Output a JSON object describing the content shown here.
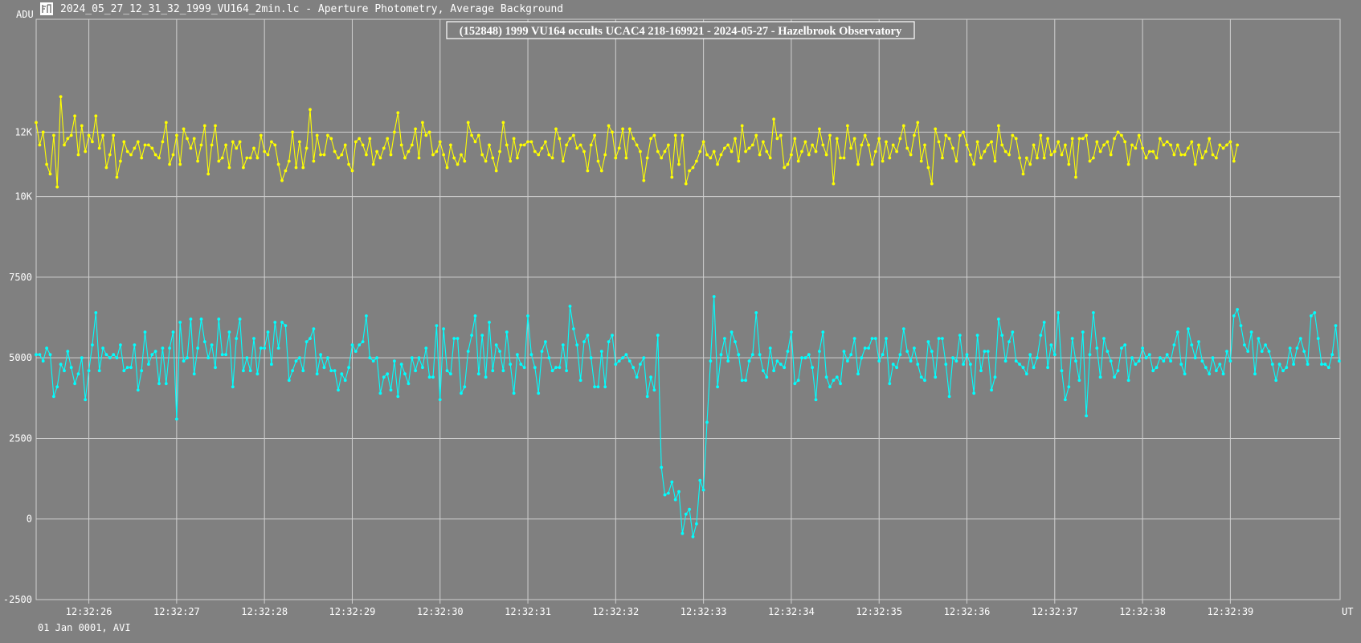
{
  "window": {
    "title": "2024_05_27_12_31_32_1999_VU164_2min.lc - Aperture Photometry, Average Background",
    "icon": "lightcurve-app-icon"
  },
  "footer": {
    "date_label": "01 Jan 0001, AVI"
  },
  "colors": {
    "background": "#808080",
    "grid": "#d0d0d0",
    "target": "#ffff00",
    "comparison": "#00ffff"
  },
  "chart_data": {
    "type": "line",
    "title": "(152848) 1999 VU164 occults UCAC4 218-169921 - 2024-05-27 - Hazelbrook Observatory",
    "ylabel": "ADU",
    "xlabel": "UT",
    "ylim": [
      -2500,
      15500
    ],
    "y_ticks": [
      -2500,
      0,
      2500,
      5000,
      7500,
      10000,
      12000
    ],
    "y_tick_labels": [
      "-2500",
      "0",
      "2500",
      "5000",
      "7500",
      "10K",
      "12K"
    ],
    "x_ticks": [
      "12:32:26",
      "12:32:27",
      "12:32:28",
      "12:32:29",
      "12:32:30",
      "12:32:31",
      "12:32:32",
      "12:32:33",
      "12:32:34",
      "12:32:35",
      "12:32:36",
      "12:32:37",
      "12:32:38",
      "12:32:39"
    ],
    "xlim": [
      "12:32:25.40",
      "12:32:40.25"
    ],
    "grid": true,
    "sample_interval_s": 0.04,
    "series": [
      {
        "color": "#ffff00",
        "t_start": "12:32:25.40",
        "values": [
          12300,
          11600,
          12000,
          11000,
          10700,
          11900,
          10300,
          13100,
          11600,
          11800,
          11900,
          12500,
          11300,
          12200,
          11400,
          11900,
          11700,
          12500,
          11500,
          11900,
          10900,
          11300,
          11900,
          10600,
          11100,
          11700,
          11400,
          11300,
          11500,
          11700,
          11200,
          11600,
          11600,
          11500,
          11300,
          11200,
          11700,
          12300,
          11000,
          11300,
          11900,
          11000,
          12100,
          11800,
          11500,
          11800,
          11100,
          11600,
          12200,
          10700,
          11600,
          12200,
          11100,
          11200,
          11600,
          10900,
          11700,
          11500,
          11700,
          10900,
          11200,
          11200,
          11500,
          11200,
          11900,
          11400,
          11300,
          11700,
          11600,
          11000,
          10500,
          10800,
          11100,
          12000,
          10900,
          11700,
          10900,
          11500,
          12700,
          11100,
          11900,
          11300,
          11300,
          11900,
          11800,
          11400,
          11200,
          11300,
          11600,
          11000,
          10800,
          11700,
          11800,
          11600,
          11300,
          11800,
          11000,
          11400,
          11200,
          11500,
          11800,
          11300,
          12000,
          12600,
          11600,
          11200,
          11400,
          11600,
          12100,
          11200,
          12300,
          11900,
          12000,
          11300,
          11400,
          11700,
          11300,
          10900,
          11600,
          11200,
          11000,
          11300,
          11100,
          12300,
          11900,
          11700,
          11900,
          11300,
          11100,
          11600,
          11200,
          10800,
          11400,
          12300,
          11600,
          11100,
          11800,
          11200,
          11600,
          11600,
          11700,
          11700,
          11400,
          11300,
          11500,
          11700,
          11300,
          11200,
          12100,
          11800,
          11100,
          11600,
          11800,
          11900,
          11500,
          11600,
          11400,
          10800,
          11600,
          11900,
          11100,
          10800,
          11300,
          12200,
          12000,
          11200,
          11500,
          12100,
          11200,
          12100,
          11800,
          11600,
          11400,
          10500,
          11200,
          11800,
          11900,
          11400,
          11200,
          11400,
          11600,
          10600,
          11900,
          11000,
          11900,
          10400,
          10800,
          10900,
          11100,
          11400,
          11700,
          11300,
          11200,
          11400,
          11000,
          11300,
          11500,
          11600,
          11400,
          11800,
          11100,
          12200,
          11400,
          11500,
          11600,
          11900,
          11300,
          11700,
          11400,
          11200,
          12400,
          11800,
          11900,
          10900,
          11000,
          11300,
          11800,
          11100,
          11400,
          11700,
          11300,
          11600,
          11400,
          12100,
          11600,
          11300,
          11900,
          10400,
          11800,
          11200,
          11200,
          12200,
          11500,
          11800,
          11000,
          11600,
          11900,
          11600,
          11000,
          11400,
          11800,
          11100,
          11700,
          11200,
          11600,
          11400,
          11800,
          12200,
          11500,
          11300,
          11900,
          12300,
          11100,
          11600,
          10900,
          10400,
          12100,
          11700,
          11200,
          11900,
          11800,
          11500,
          11100,
          11900,
          12000,
          11600,
          11300,
          11000,
          11700,
          11200,
          11400,
          11600,
          11700,
          11100,
          12200,
          11600,
          11400,
          11300,
          11900,
          11800,
          11200,
          10700,
          11200,
          11000,
          11600,
          11200,
          11900,
          11200,
          11800,
          11300,
          11400,
          11700,
          11300,
          11600,
          11000,
          11800,
          10600,
          11800,
          11800,
          11900,
          11100,
          11200,
          11700,
          11400,
          11600,
          11700,
          11300,
          11800,
          12000,
          11900,
          11700,
          11000,
          11600,
          11500,
          11900,
          11500,
          11200,
          11400,
          11400,
          11200,
          11800,
          11600,
          11700,
          11600,
          11300,
          11600,
          11300,
          11300,
          11500,
          11700,
          11000,
          11600,
          11200,
          11400,
          11800,
          11300,
          11200,
          11600,
          11500,
          11600,
          11700,
          11100,
          11600
        ]
      },
      {
        "color": "#00ffff",
        "t_start": "12:32:25.40",
        "values": [
          5100,
          5100,
          4900,
          5300,
          5100,
          3800,
          4100,
          4800,
          4600,
          5200,
          4700,
          4200,
          4500,
          5000,
          3700,
          4600,
          5400,
          6400,
          4600,
          5300,
          5100,
          5000,
          5100,
          5000,
          5400,
          4600,
          4700,
          4700,
          5400,
          4000,
          4600,
          5800,
          4800,
          5100,
          5200,
          4200,
          5300,
          4200,
          5300,
          5800,
          3100,
          6100,
          4900,
          5000,
          6200,
          4500,
          5300,
          6200,
          5500,
          5000,
          5400,
          4700,
          6200,
          5100,
          5100,
          5800,
          4100,
          5600,
          6200,
          4600,
          5000,
          4600,
          5600,
          4500,
          5300,
          5300,
          5800,
          4800,
          6100,
          5300,
          6100,
          6000,
          4300,
          4600,
          4900,
          5000,
          4600,
          5500,
          5600,
          5900,
          4500,
          5100,
          4700,
          5000,
          4600,
          4600,
          4000,
          4500,
          4300,
          4700,
          5400,
          5200,
          5400,
          5500,
          6300,
          5000,
          4900,
          5000,
          3900,
          4400,
          4500,
          4000,
          4900,
          3800,
          4800,
          4500,
          4200,
          5000,
          4600,
          5000,
          4700,
          5300,
          4400,
          4400,
          6000,
          3700,
          5900,
          4600,
          4500,
          5600,
          5600,
          3900,
          4100,
          5200,
          5700,
          6300,
          4500,
          5700,
          4400,
          6100,
          4600,
          5400,
          5200,
          4600,
          5800,
          4800,
          3900,
          5100,
          4800,
          4700,
          6300,
          5100,
          4700,
          3900,
          5200,
          5500,
          5000,
          4600,
          4700,
          4700,
          5400,
          4600,
          6600,
          5900,
          5400,
          4300,
          5500,
          5700,
          5000,
          4100,
          4100,
          5200,
          4100,
          5500,
          5700,
          4800,
          4900,
          5000,
          5100,
          4900,
          4700,
          4400,
          4800,
          5000,
          3800,
          4400,
          4000,
          5700,
          1600,
          750,
          800,
          1150,
          600,
          850,
          -450,
          150,
          300,
          -550,
          -150,
          1200,
          900,
          3000,
          4900,
          6900,
          4100,
          5100,
          5600,
          4900,
          5800,
          5500,
          5100,
          4300,
          4300,
          4900,
          5100,
          6400,
          5100,
          4600,
          4400,
          5300,
          4600,
          4900,
          4800,
          4700,
          5200,
          5800,
          4200,
          4300,
          5000,
          5000,
          5100,
          4700,
          3700,
          5200,
          5800,
          4400,
          4100,
          4300,
          4400,
          4200,
          5200,
          4900,
          5100,
          5600,
          4500,
          5000,
          5300,
          5300,
          5600,
          5600,
          4900,
          5100,
          5600,
          4200,
          4800,
          4700,
          5100,
          5900,
          5200,
          4900,
          5300,
          4800,
          4400,
          4300,
          5500,
          5200,
          4400,
          5600,
          5600,
          4800,
          3800,
          5000,
          4900,
          5700,
          4800,
          5100,
          4800,
          3900,
          5700,
          4600,
          5200,
          5200,
          4000,
          4400,
          6200,
          5700,
          4900,
          5500,
          5800,
          4900,
          4800,
          4700,
          4500,
          5100,
          4700,
          5000,
          5700,
          6100,
          4700,
          5400,
          5100,
          6400,
          4600,
          3700,
          4100,
          5600,
          4900,
          4300,
          5800,
          3200,
          5100,
          6400,
          5300,
          4400,
          5600,
          5200,
          4900,
          4400,
          4600,
          5300,
          5400,
          4300,
          5000,
          4800,
          4900,
          5300,
          5000,
          5100,
          4600,
          4700,
          5000,
          4900,
          5100,
          4900,
          5400,
          5800,
          4800,
          4500,
          5900,
          5400,
          5000,
          5500,
          4900,
          4700,
          4500,
          5000,
          4600,
          4800,
          4500,
          5200,
          4900,
          6300,
          6500,
          6000,
          5400,
          5200,
          5800,
          4500,
          5600,
          5200,
          5400,
          5200,
          4800,
          4300,
          4800,
          4600,
          4700,
          5300,
          4800,
          5300,
          5600,
          5200,
          4800,
          6300,
          6400,
          5600,
          4800,
          4800,
          4700,
          5100,
          6000,
          4900
        ]
      }
    ]
  }
}
